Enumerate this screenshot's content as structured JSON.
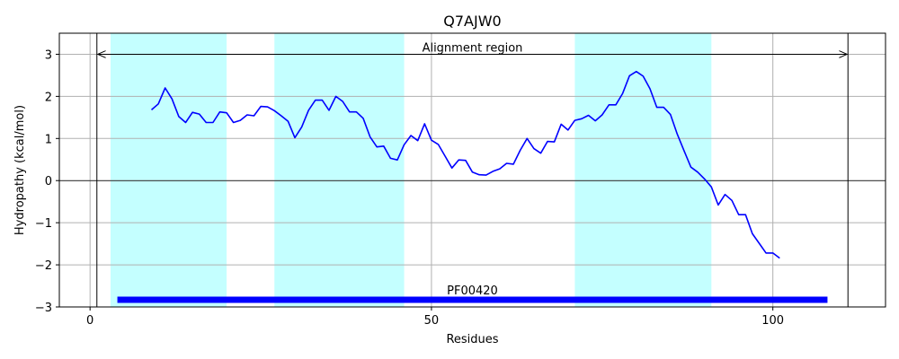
{
  "chart_data": {
    "type": "line",
    "title": "Q7AJW0",
    "xlabel": "Residues",
    "ylabel": "Hydropathy (kcal/mol)",
    "xlim": [
      -4.5,
      116.5
    ],
    "ylim": [
      -3,
      3.5
    ],
    "xticks": [
      0,
      50,
      100
    ],
    "yticks": [
      -3,
      -2,
      -1,
      0,
      1,
      2,
      3
    ],
    "grid": true,
    "colors": {
      "line": "#0000ff",
      "region": "#c4ffff",
      "domain_bar": "#0000ff",
      "axis": "#000000",
      "grid": "#b0b0b0"
    },
    "shaded_regions": [
      [
        3,
        20
      ],
      [
        27,
        46
      ],
      [
        71,
        91
      ]
    ],
    "alignment_region": {
      "label": "Alignment region",
      "start": 1,
      "end": 111,
      "y": 3
    },
    "domain": {
      "label": "PF00420",
      "start": 4,
      "end": 108,
      "y": -2.83
    },
    "series": [
      {
        "x": [
          9,
          10,
          11,
          12,
          13,
          14,
          15,
          16,
          17,
          18,
          19,
          20,
          21,
          22,
          23,
          24,
          25,
          26,
          27,
          28,
          29,
          30,
          31,
          32,
          33,
          34,
          35,
          36,
          37,
          38,
          39,
          40,
          41,
          42,
          43,
          44,
          45,
          46,
          47,
          48,
          49,
          50,
          51,
          52,
          53,
          54,
          55,
          56,
          57,
          58,
          59,
          60,
          61,
          62,
          63,
          64,
          65,
          66,
          67,
          68,
          69,
          70,
          71,
          72,
          73,
          74,
          75,
          76,
          77,
          78,
          79,
          80,
          81,
          82,
          83,
          84,
          85,
          86,
          87,
          88,
          89,
          90,
          91,
          92,
          93,
          94,
          95,
          96,
          97,
          98,
          99,
          100,
          101
        ],
        "values": [
          1.68,
          1.82,
          2.2,
          1.94,
          1.52,
          1.38,
          1.62,
          1.58,
          1.38,
          1.38,
          1.63,
          1.61,
          1.38,
          1.43,
          1.56,
          1.54,
          1.76,
          1.75,
          1.66,
          1.54,
          1.41,
          1.02,
          1.27,
          1.67,
          1.91,
          1.91,
          1.67,
          2.0,
          1.88,
          1.63,
          1.63,
          1.48,
          1.04,
          0.8,
          0.82,
          0.53,
          0.49,
          0.85,
          1.07,
          0.95,
          1.35,
          0.96,
          0.86,
          0.58,
          0.3,
          0.49,
          0.48,
          0.2,
          0.14,
          0.13,
          0.22,
          0.28,
          0.41,
          0.39,
          0.72,
          1.0,
          0.76,
          0.65,
          0.93,
          0.92,
          1.34,
          1.2,
          1.43,
          1.47,
          1.55,
          1.42,
          1.56,
          1.8,
          1.8,
          2.07,
          2.49,
          2.59,
          2.48,
          2.18,
          1.74,
          1.74,
          1.57,
          1.1,
          0.71,
          0.32,
          0.2,
          0.04,
          -0.15,
          -0.58,
          -0.33,
          -0.47,
          -0.81,
          -0.81,
          -1.26,
          -1.49,
          -1.72,
          -1.72,
          -1.84
        ]
      }
    ]
  }
}
